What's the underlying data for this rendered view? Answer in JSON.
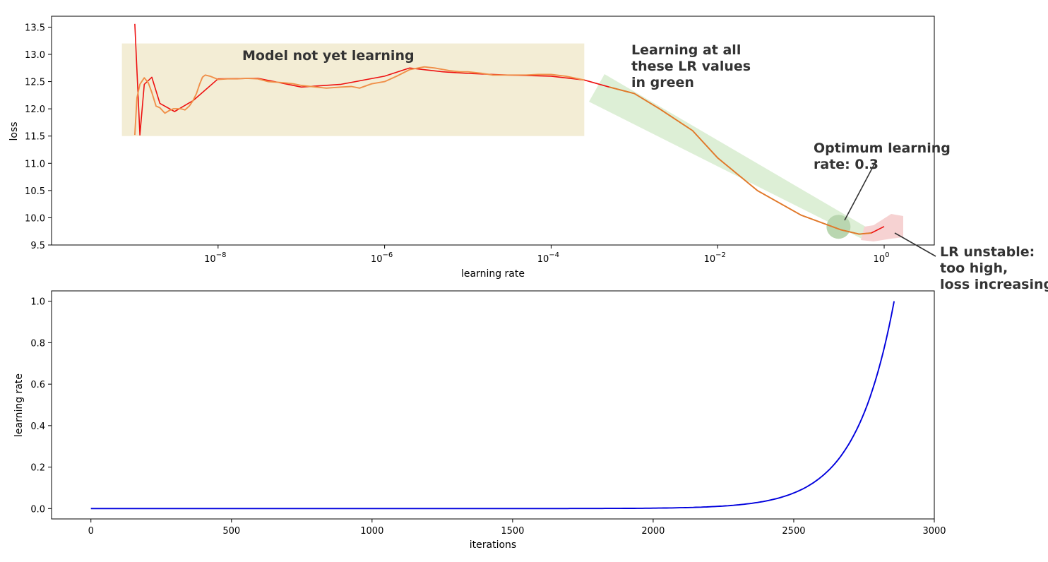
{
  "chart_data": [
    {
      "type": "line",
      "xscale": "log",
      "xlabel": "learning rate",
      "ylabel": "loss",
      "xlim": [
        1e-10,
        4
      ],
      "ylim": [
        9.5,
        13.7
      ],
      "x_ticks": [
        {
          "value": 1e-08,
          "base": "10",
          "exp": "−8"
        },
        {
          "value": 1e-06,
          "base": "10",
          "exp": "−6"
        },
        {
          "value": 0.0001,
          "base": "10",
          "exp": "−4"
        },
        {
          "value": 0.01,
          "base": "10",
          "exp": "−2"
        },
        {
          "value": 1,
          "base": "10",
          "exp": "0"
        }
      ],
      "y_ticks": [
        "9.5",
        "10.0",
        "10.5",
        "11.0",
        "11.5",
        "12.0",
        "12.5",
        "13.0",
        "13.5"
      ],
      "colors": {
        "raw": "#ee1111",
        "smoothed": "#f0904a",
        "smoothed_right": "#e07b2a"
      },
      "series": [
        {
          "role": "raw",
          "x": [
            1e-09,
            1.15e-09,
            1.3e-09,
            1.6e-09,
            2e-09,
            3e-09,
            5e-09,
            1e-08,
            3e-08,
            1e-07,
            3e-07,
            1e-06,
            2e-06,
            5e-06,
            1e-05,
            3e-05,
            0.0001,
            0.00025,
            0.0005,
            0.001,
            0.002,
            0.005,
            0.01,
            0.03,
            0.1,
            0.3,
            0.5,
            0.7,
            1
          ],
          "values": [
            13.56,
            11.52,
            12.45,
            12.58,
            12.1,
            11.95,
            12.15,
            12.55,
            12.56,
            12.4,
            12.45,
            12.6,
            12.75,
            12.68,
            12.65,
            12.62,
            12.6,
            12.53,
            12.4,
            12.28,
            12.0,
            11.6,
            11.1,
            10.5,
            10.05,
            9.78,
            9.7,
            9.72,
            9.84
          ]
        },
        {
          "role": "smoothed",
          "x": [
            1e-09,
            1.06e-09,
            1.15e-09,
            1.3e-09,
            1.45e-09,
            1.6e-09,
            1.8e-09,
            2e-09,
            2.3e-09,
            2.6e-09,
            2.9e-09,
            3.3e-09,
            3.6e-09,
            4e-09,
            4.5e-09,
            5e-09,
            5.5e-09,
            6e-09,
            6.5e-09,
            7e-09,
            8e-09,
            1e-08,
            1.3e-08,
            1.7e-08,
            2.2e-08,
            3e-08,
            4e-08,
            6e-08,
            8e-08,
            1e-07,
            1.5e-07,
            2e-07,
            3e-07,
            4e-07,
            5e-07,
            7e-07,
            1e-06,
            1.4e-06,
            2e-06,
            3e-06,
            4e-06,
            6e-06,
            8e-06,
            1e-05,
            1.5e-05,
            2e-05,
            3e-05,
            5e-05,
            7e-05,
            0.0001,
            0.00015,
            0.00025
          ],
          "values": [
            11.52,
            12.2,
            12.45,
            12.57,
            12.48,
            12.3,
            12.05,
            12.02,
            11.92,
            11.97,
            12.0,
            12.0,
            12.0,
            11.98,
            12.05,
            12.15,
            12.28,
            12.45,
            12.58,
            12.62,
            12.6,
            12.54,
            12.55,
            12.55,
            12.56,
            12.55,
            12.5,
            12.48,
            12.46,
            12.43,
            12.4,
            12.38,
            12.4,
            12.41,
            12.38,
            12.46,
            12.5,
            12.6,
            12.72,
            12.77,
            12.75,
            12.7,
            12.68,
            12.68,
            12.65,
            12.62,
            12.62,
            12.62,
            12.63,
            12.63,
            12.6,
            12.53
          ]
        },
        {
          "role": "smoothed_right",
          "x": [
            0.0005,
            0.001,
            0.002,
            0.005,
            0.01,
            0.03,
            0.1,
            0.3,
            0.5,
            0.7
          ],
          "values": [
            12.4,
            12.28,
            12.0,
            11.6,
            11.1,
            10.5,
            10.05,
            9.78,
            9.7,
            9.72
          ]
        }
      ],
      "regions": {
        "not_learning": {
          "x": [
            7e-10,
            0.00025
          ],
          "y": [
            11.5,
            13.2
          ],
          "color": "#f3edd5"
        },
        "learning": {
          "color": "#ddefd6"
        },
        "unstable": {
          "color": "#f6d2d2"
        },
        "optimum_marker": {
          "x": 0.3,
          "y": 9.86,
          "color": "#b9d6b0"
        }
      },
      "annotations": {
        "not_learning": "Model not yet learning",
        "learning_lines": [
          "Learning at all",
          "these LR values",
          "in green"
        ],
        "optimum_lines": [
          "Optimum learning",
          "rate: 0.3"
        ],
        "unstable_lines": [
          "LR unstable:",
          "too high,",
          "loss increasing"
        ]
      }
    },
    {
      "type": "line",
      "xlabel": "iterations",
      "ylabel": "learning rate",
      "xlim": [
        -140,
        3000
      ],
      "ylim": [
        -0.05,
        1.05
      ],
      "x_ticks": [
        "0",
        "500",
        "1000",
        "1500",
        "2000",
        "2500",
        "3000"
      ],
      "y_ticks": [
        "0.0",
        "0.2",
        "0.4",
        "0.6",
        "0.8",
        "1.0"
      ],
      "series": [
        {
          "role": "schedule",
          "color": "#0000dd",
          "x_start": 0,
          "x_end": 2857,
          "lr_min": 1e-09,
          "lr_max": 1
        }
      ]
    }
  ]
}
